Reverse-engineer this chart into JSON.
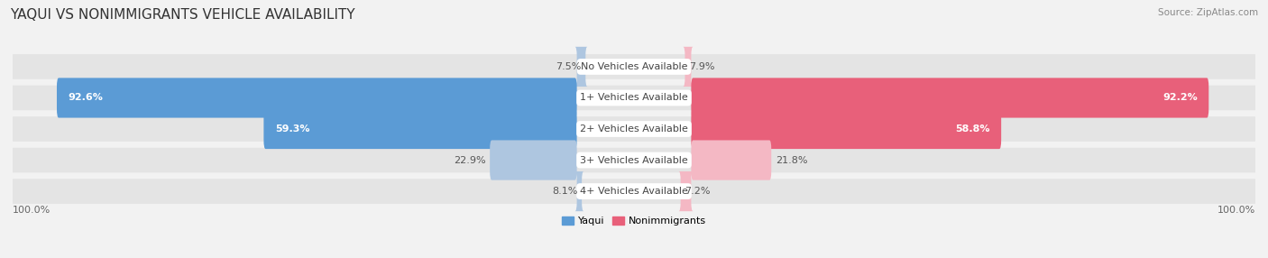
{
  "title": "YAQUI VS NONIMMIGRANTS VEHICLE AVAILABILITY",
  "source": "Source: ZipAtlas.com",
  "categories": [
    "No Vehicles Available",
    "1+ Vehicles Available",
    "2+ Vehicles Available",
    "3+ Vehicles Available",
    "4+ Vehicles Available"
  ],
  "yaqui_values": [
    7.5,
    92.6,
    59.3,
    22.9,
    8.1
  ],
  "nonimmigrant_values": [
    7.9,
    92.2,
    58.8,
    21.8,
    7.2
  ],
  "yaqui_color_strong": "#5b9bd5",
  "yaqui_color_light": "#aec6e0",
  "nonimmigrant_color_strong": "#e8607a",
  "nonimmigrant_color_light": "#f4b8c4",
  "yaqui_label": "Yaqui",
  "nonimmigrant_label": "Nonimmigrants",
  "max_val": 100.0,
  "bg_color": "#f2f2f2",
  "row_bg_color": "#e8e8e8",
  "title_fontsize": 11,
  "label_fontsize": 8,
  "value_fontsize": 8,
  "axis_label_fontsize": 8,
  "strong_threshold": 50
}
